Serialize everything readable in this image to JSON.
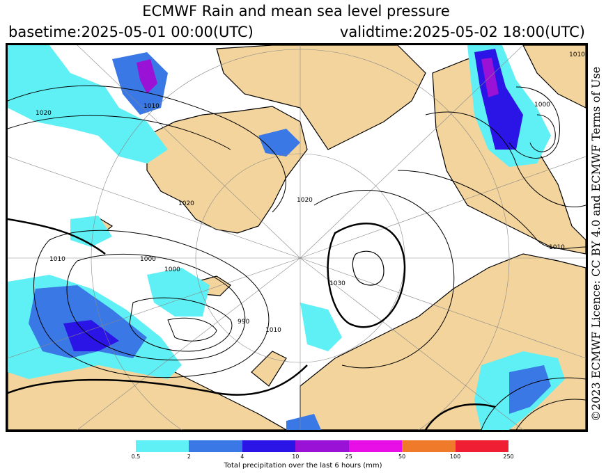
{
  "header": {
    "title": "ECMWF Rain and mean sea level pressure",
    "basetime": "basetime:2025-05-01 00:00(UTC)",
    "validtime": "validtime:2025-05-02 18:00(UTC)"
  },
  "licence": "©2023 ECMWF Licence: CC BY 4.0 and ECMWF Terms of Use",
  "map": {
    "contour_labels": [
      "1020",
      "1010",
      "1000",
      "990",
      "1000",
      "1010",
      "1020",
      "1030",
      "1010",
      "1000",
      "1010",
      "1010",
      "1020"
    ],
    "colors": {
      "land": "#f3d49c",
      "sea": "#ffffff",
      "coast": "#000000",
      "isobar": "#000000"
    }
  },
  "legend": {
    "colors": [
      "#5ff0f5",
      "#3a78e6",
      "#2a14e6",
      "#9a12d6",
      "#e80ee6",
      "#ef7a2a",
      "#ef1e32"
    ],
    "ticks": [
      "0.5",
      "2",
      "4",
      "10",
      "25",
      "50",
      "100",
      "250"
    ],
    "label": "Total precipitation over the last 6 hours (mm)"
  }
}
